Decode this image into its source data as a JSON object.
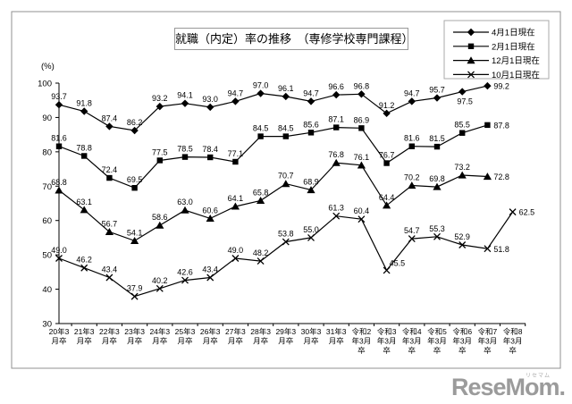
{
  "chart_data": {
    "type": "line",
    "title": "就職（内定）率の推移　（専修学校専門課程）",
    "ylabel": "(%)",
    "xlabel": "",
    "ylim": [
      30,
      100
    ],
    "yticks": [
      30,
      40,
      50,
      60,
      70,
      80,
      90,
      100
    ],
    "grid": false,
    "legend_position": "top-right",
    "line_color": "#000000",
    "categories": [
      "20年3月卒",
      "21年3月卒",
      "22年3月卒",
      "23年3月卒",
      "24年3月卒",
      "25年3月卒",
      "26年3月卒",
      "27年3月卒",
      "28年3月卒",
      "29年3月卒",
      "30年3月卒",
      "31年3月卒",
      "令和2年3月卒",
      "令和3年3月卒",
      "令和4年3月卒",
      "令和5年3月卒",
      "令和6年3月卒",
      "令和7年3月卒",
      "令和8年3月卒"
    ],
    "series": [
      {
        "name": "4月1日現在",
        "marker": "diamond",
        "values": [
          93.7,
          91.8,
          87.4,
          86.2,
          93.2,
          94.1,
          93.0,
          94.7,
          97.0,
          96.1,
          94.7,
          96.6,
          96.8,
          91.2,
          94.7,
          95.7,
          97.5,
          99.2,
          null
        ]
      },
      {
        "name": "2月1日現在",
        "marker": "square",
        "values": [
          81.6,
          78.8,
          72.4,
          69.5,
          77.5,
          78.5,
          78.4,
          77.1,
          84.5,
          84.5,
          85.6,
          87.1,
          86.9,
          76.7,
          81.6,
          81.5,
          85.5,
          87.8,
          null
        ]
      },
      {
        "name": "12月1日現在",
        "marker": "triangle",
        "values": [
          68.8,
          63.1,
          56.7,
          54.1,
          58.6,
          63.0,
          60.6,
          64.1,
          65.8,
          70.7,
          68.9,
          76.8,
          76.1,
          64.4,
          70.2,
          69.8,
          73.2,
          72.8,
          null
        ]
      },
      {
        "name": "10月1日現在",
        "marker": "x",
        "values": [
          49.0,
          46.2,
          43.4,
          37.9,
          40.2,
          42.6,
          43.4,
          49.0,
          48.2,
          53.8,
          55.0,
          61.3,
          60.4,
          45.5,
          54.7,
          55.3,
          52.9,
          51.8,
          62.5
        ]
      }
    ]
  },
  "watermark": {
    "text": "ReseMom.",
    "ruby": "リセマム"
  }
}
